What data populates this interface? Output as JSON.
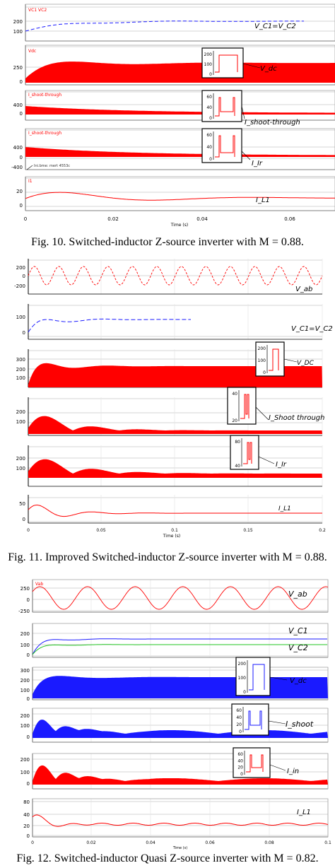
{
  "figures": [
    {
      "caption": "Fig. 10. Switched-inductor Z-source inverter with M = 0.88.",
      "time_label": "Time (s)",
      "x_ticks": [
        "0",
        "0.02",
        "0.04",
        "0.06"
      ],
      "panels": [
        {
          "tag": "VC1  VC2",
          "label": "V_C1=V_C2",
          "yticks": [
            "200",
            "100"
          ]
        },
        {
          "tag": "Vdc",
          "label": "V_dc",
          "yticks": [
            "250",
            "0"
          ],
          "inset_ticks": [
            "200",
            "100",
            "0"
          ]
        },
        {
          "tag": "I_shoot-through",
          "label": "I_shoot-through",
          "yticks": [
            "400",
            "0"
          ],
          "inset_ticks": [
            "60",
            "40",
            "0"
          ]
        },
        {
          "tag": "I_shoot-through",
          "label": "I_Ir",
          "yticks": [
            "400",
            "0",
            "-400"
          ],
          "inset_ticks": [
            "60",
            "40",
            "0"
          ],
          "note": "Ini.bme: mert 4553c"
        },
        {
          "tag": "I1",
          "label": "I_L1",
          "yticks": [
            "20",
            "0"
          ]
        }
      ]
    },
    {
      "caption": "Fig. 11. Improved Switched-inductor Z-source inverter with M = 0.88.",
      "time_label": "Time (s)",
      "x_ticks": [
        "0",
        "0.05",
        "0.1",
        "0.15",
        "0.2"
      ],
      "panels": [
        {
          "label": "V_ab",
          "yticks": [
            "200",
            "0",
            "-200"
          ]
        },
        {
          "label": "V_C1=V_C2",
          "yticks": [
            "100",
            "0"
          ]
        },
        {
          "label": "V_DC",
          "yticks": [
            "300",
            "200",
            "100"
          ],
          "inset_ticks": [
            "200",
            "100",
            "0"
          ]
        },
        {
          "label": "I_Shoot through",
          "yticks": [
            "200",
            "100"
          ],
          "inset_ticks": [
            "40",
            "20"
          ]
        },
        {
          "label": "I_Ir",
          "yticks": [
            "200",
            "100"
          ],
          "inset_ticks": [
            "80",
            "40"
          ]
        },
        {
          "label": "I_L1",
          "yticks": [
            "50",
            "0"
          ]
        }
      ]
    },
    {
      "caption": "Fig. 12. Switched-inductor Quasi Z-source inverter with M = 0.82.",
      "time_label": "Time (s)",
      "x_ticks": [
        "0",
        "0.02",
        "0.04",
        "0.06",
        "0.08",
        "0.1"
      ],
      "panels": [
        {
          "tag": "Vab",
          "label": "V_ab",
          "yticks": [
            "250",
            "0",
            "-250"
          ]
        },
        {
          "label": "V_C1",
          "label2": "V_C2",
          "yticks": [
            "200",
            "100",
            "0"
          ]
        },
        {
          "label": "V_dc",
          "yticks": [
            "300",
            "200",
            "100",
            "0"
          ],
          "inset_ticks": [
            "200",
            "100",
            "0"
          ]
        },
        {
          "label": "I_shoot",
          "yticks": [
            "200",
            "100",
            "0"
          ],
          "inset_ticks": [
            "60",
            "40",
            "20",
            "0"
          ]
        },
        {
          "label": "I_in",
          "yticks": [
            "200",
            "100",
            "0"
          ],
          "inset_ticks": [
            "60",
            "40",
            "20",
            "0"
          ]
        },
        {
          "label": "I_L1",
          "yticks": [
            "80",
            "40",
            "20",
            "0"
          ]
        }
      ]
    }
  ],
  "colors": {
    "red": "#ff0000",
    "blue": "#1a1aff",
    "green": "#22c422",
    "grid": "#c8c8c8",
    "axis": "#000000"
  }
}
